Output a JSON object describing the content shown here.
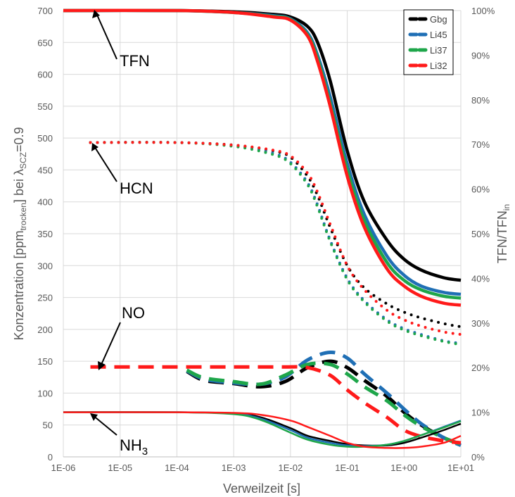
{
  "chart_data": {
    "type": "line",
    "xlabel": "Verweilzeit [s]",
    "ylabel": {
      "t1": "Konzentration [ppm",
      "sub1": "trocken",
      "t2": "] bei λ",
      "sub2": "SCZ",
      "t3": "=0.9"
    },
    "y2label": {
      "t1": "TFN/TFN",
      "sub": "in"
    },
    "x_scale": "log",
    "xlim": [
      1e-06,
      10
    ],
    "ylim": [
      0,
      700
    ],
    "y2lim": [
      0,
      1
    ],
    "x_ticks": [
      "1E-06",
      "1E-05",
      "1E-04",
      "1E-03",
      "1E-02",
      "1E-01",
      "1E+00",
      "1E+01"
    ],
    "y_ticks": [
      "0",
      "50",
      "100",
      "150",
      "200",
      "250",
      "300",
      "350",
      "400",
      "450",
      "500",
      "550",
      "600",
      "650",
      "700"
    ],
    "y2_ticks": [
      "0%",
      "10%",
      "20%",
      "30%",
      "40%",
      "50%",
      "60%",
      "70%",
      "80%",
      "90%",
      "100%"
    ],
    "grid": true,
    "legend_position": "top-right",
    "legend": [
      {
        "name": "Gbg",
        "color": "#000000"
      },
      {
        "name": "Li45",
        "color": "#1f6fb5"
      },
      {
        "name": "Li37",
        "color": "#1ea64a"
      },
      {
        "name": "Li32",
        "color": "#ff1a1a"
      }
    ],
    "annotations": [
      {
        "text": "TFN",
        "x": 1e-05,
        "y": 700
      },
      {
        "text": "HCN",
        "x": 1e-05,
        "y": 493
      },
      {
        "text": "NO",
        "x": 1e-05,
        "y": 141
      },
      {
        "text": "NH",
        "sub": "3",
        "x": 1e-05,
        "y": 70
      }
    ],
    "series": [
      {
        "species": "TFN",
        "group": "Gbg",
        "style": "solid",
        "x": [
          1e-06,
          0.0001,
          0.001,
          0.005,
          0.01,
          0.02,
          0.03,
          0.05,
          0.1,
          0.2,
          0.5,
          1,
          2,
          5,
          10
        ],
        "y": [
          700,
          700,
          698,
          694,
          690,
          675,
          650,
          590,
          480,
          400,
          340,
          310,
          293,
          281,
          277
        ]
      },
      {
        "species": "TFN",
        "group": "Li45",
        "style": "solid",
        "x": [
          1e-06,
          0.0001,
          0.001,
          0.005,
          0.01,
          0.02,
          0.03,
          0.05,
          0.1,
          0.2,
          0.5,
          1,
          2,
          5,
          10
        ],
        "y": [
          700,
          700,
          697,
          692,
          687,
          665,
          630,
          565,
          460,
          380,
          315,
          285,
          268,
          258,
          255
        ]
      },
      {
        "species": "TFN",
        "group": "Li37",
        "style": "solid",
        "x": [
          1e-06,
          0.0001,
          0.001,
          0.005,
          0.01,
          0.02,
          0.03,
          0.05,
          0.1,
          0.2,
          0.5,
          1,
          2,
          5,
          10
        ],
        "y": [
          700,
          700,
          697,
          691,
          686,
          662,
          625,
          555,
          450,
          370,
          305,
          277,
          262,
          252,
          249
        ]
      },
      {
        "species": "TFN",
        "group": "Li32",
        "style": "solid",
        "x": [
          1e-06,
          0.0001,
          0.001,
          0.005,
          0.01,
          0.02,
          0.03,
          0.05,
          0.1,
          0.2,
          0.5,
          1,
          2,
          5,
          10
        ],
        "y": [
          700,
          700,
          697,
          690,
          685,
          660,
          620,
          550,
          440,
          360,
          295,
          268,
          252,
          241,
          238
        ]
      },
      {
        "species": "HCN",
        "group": "Gbg",
        "style": "dotted",
        "x": [
          3e-06,
          0.0001,
          0.001,
          0.005,
          0.01,
          0.02,
          0.03,
          0.05,
          0.1,
          0.2,
          0.5,
          1,
          2,
          5,
          10
        ],
        "y": [
          493,
          493,
          489,
          480,
          470,
          440,
          410,
          360,
          300,
          265,
          240,
          227,
          218,
          209,
          204
        ]
      },
      {
        "species": "HCN",
        "group": "Li45",
        "style": "dotted",
        "x": [
          3e-06,
          0.0001,
          0.001,
          0.005,
          0.01,
          0.02,
          0.03,
          0.05,
          0.1,
          0.2,
          0.5,
          1,
          2,
          5,
          10
        ],
        "y": [
          493,
          493,
          488,
          476,
          462,
          430,
          395,
          340,
          280,
          245,
          215,
          201,
          192,
          182,
          178
        ]
      },
      {
        "species": "HCN",
        "group": "Li37",
        "style": "dotted",
        "x": [
          3e-06,
          0.0001,
          0.001,
          0.005,
          0.01,
          0.02,
          0.03,
          0.05,
          0.1,
          0.2,
          0.5,
          1,
          2,
          5,
          10
        ],
        "y": [
          493,
          493,
          487,
          474,
          460,
          427,
          392,
          338,
          278,
          243,
          213,
          199,
          190,
          181,
          176
        ]
      },
      {
        "species": "HCN",
        "group": "Li32",
        "style": "dotted",
        "x": [
          3e-06,
          0.0001,
          0.001,
          0.005,
          0.01,
          0.02,
          0.03,
          0.05,
          0.1,
          0.2,
          0.5,
          1,
          2,
          5,
          10
        ],
        "y": [
          493,
          493,
          489,
          481,
          472,
          445,
          415,
          365,
          300,
          262,
          230,
          215,
          205,
          196,
          192
        ]
      },
      {
        "species": "NO",
        "group": "Gbg",
        "style": "dashed",
        "x": [
          0.00015,
          0.0003,
          0.001,
          0.003,
          0.008,
          0.02,
          0.05,
          0.1,
          0.2,
          0.5,
          1,
          2,
          5,
          10
        ],
        "y": [
          134,
          120,
          115,
          110,
          118,
          140,
          150,
          140,
          120,
          95,
          70,
          50,
          30,
          20
        ]
      },
      {
        "species": "NO",
        "group": "Li45",
        "style": "dashed",
        "x": [
          0.00015,
          0.0003,
          0.001,
          0.003,
          0.008,
          0.02,
          0.05,
          0.1,
          0.2,
          0.5,
          1,
          2,
          5,
          10
        ],
        "y": [
          135,
          122,
          116,
          114,
          125,
          152,
          164,
          155,
          130,
          100,
          75,
          52,
          30,
          18
        ]
      },
      {
        "species": "NO",
        "group": "Li37",
        "style": "dashed",
        "x": [
          0.00015,
          0.0003,
          0.001,
          0.003,
          0.008,
          0.02,
          0.05,
          0.1,
          0.2,
          0.5,
          1,
          2,
          5,
          10
        ],
        "y": [
          136,
          124,
          118,
          114,
          128,
          145,
          145,
          130,
          110,
          88,
          66,
          48,
          30,
          20
        ]
      },
      {
        "species": "NO",
        "group": "Li32",
        "style": "dashed",
        "x": [
          3e-06,
          0.0001,
          0.001,
          0.003,
          0.008,
          0.02,
          0.05,
          0.1,
          0.2,
          0.5,
          1,
          2,
          5,
          10
        ],
        "y": [
          141,
          141,
          141,
          141,
          141,
          140,
          128,
          105,
          85,
          62,
          42,
          32,
          25,
          22
        ]
      },
      {
        "species": "NH3",
        "group": "Gbg",
        "style": "solid",
        "x": [
          1e-06,
          0.0001,
          0.001,
          0.003,
          0.01,
          0.02,
          0.05,
          0.1,
          0.2,
          0.5,
          1,
          2,
          5,
          10
        ],
        "y": [
          70,
          70,
          68,
          62,
          45,
          33,
          25,
          20,
          18,
          18,
          22,
          30,
          42,
          52
        ]
      },
      {
        "species": "NH3",
        "group": "Li45",
        "style": "solid",
        "x": [
          1e-06,
          0.0001,
          0.001,
          0.003,
          0.01,
          0.02,
          0.05,
          0.1,
          0.2,
          0.5,
          1,
          2,
          5,
          10
        ],
        "y": [
          70,
          70,
          68,
          60,
          42,
          30,
          22,
          18,
          17,
          19,
          25,
          34,
          47,
          57
        ]
      },
      {
        "species": "NH3",
        "group": "Li37",
        "style": "solid",
        "x": [
          1e-06,
          0.0001,
          0.001,
          0.003,
          0.01,
          0.02,
          0.05,
          0.1,
          0.2,
          0.5,
          1,
          2,
          5,
          10
        ],
        "y": [
          70,
          70,
          67,
          58,
          38,
          27,
          19,
          16,
          16,
          19,
          25,
          34,
          46,
          56
        ]
      },
      {
        "species": "NH3",
        "group": "Li32",
        "style": "solid",
        "x": [
          1e-06,
          0.0001,
          0.001,
          0.003,
          0.01,
          0.02,
          0.05,
          0.1,
          0.2,
          0.5,
          1,
          2,
          5,
          10
        ],
        "y": [
          70,
          70,
          69,
          66,
          57,
          47,
          33,
          22,
          16,
          14,
          14,
          16,
          22,
          33
        ]
      }
    ]
  }
}
